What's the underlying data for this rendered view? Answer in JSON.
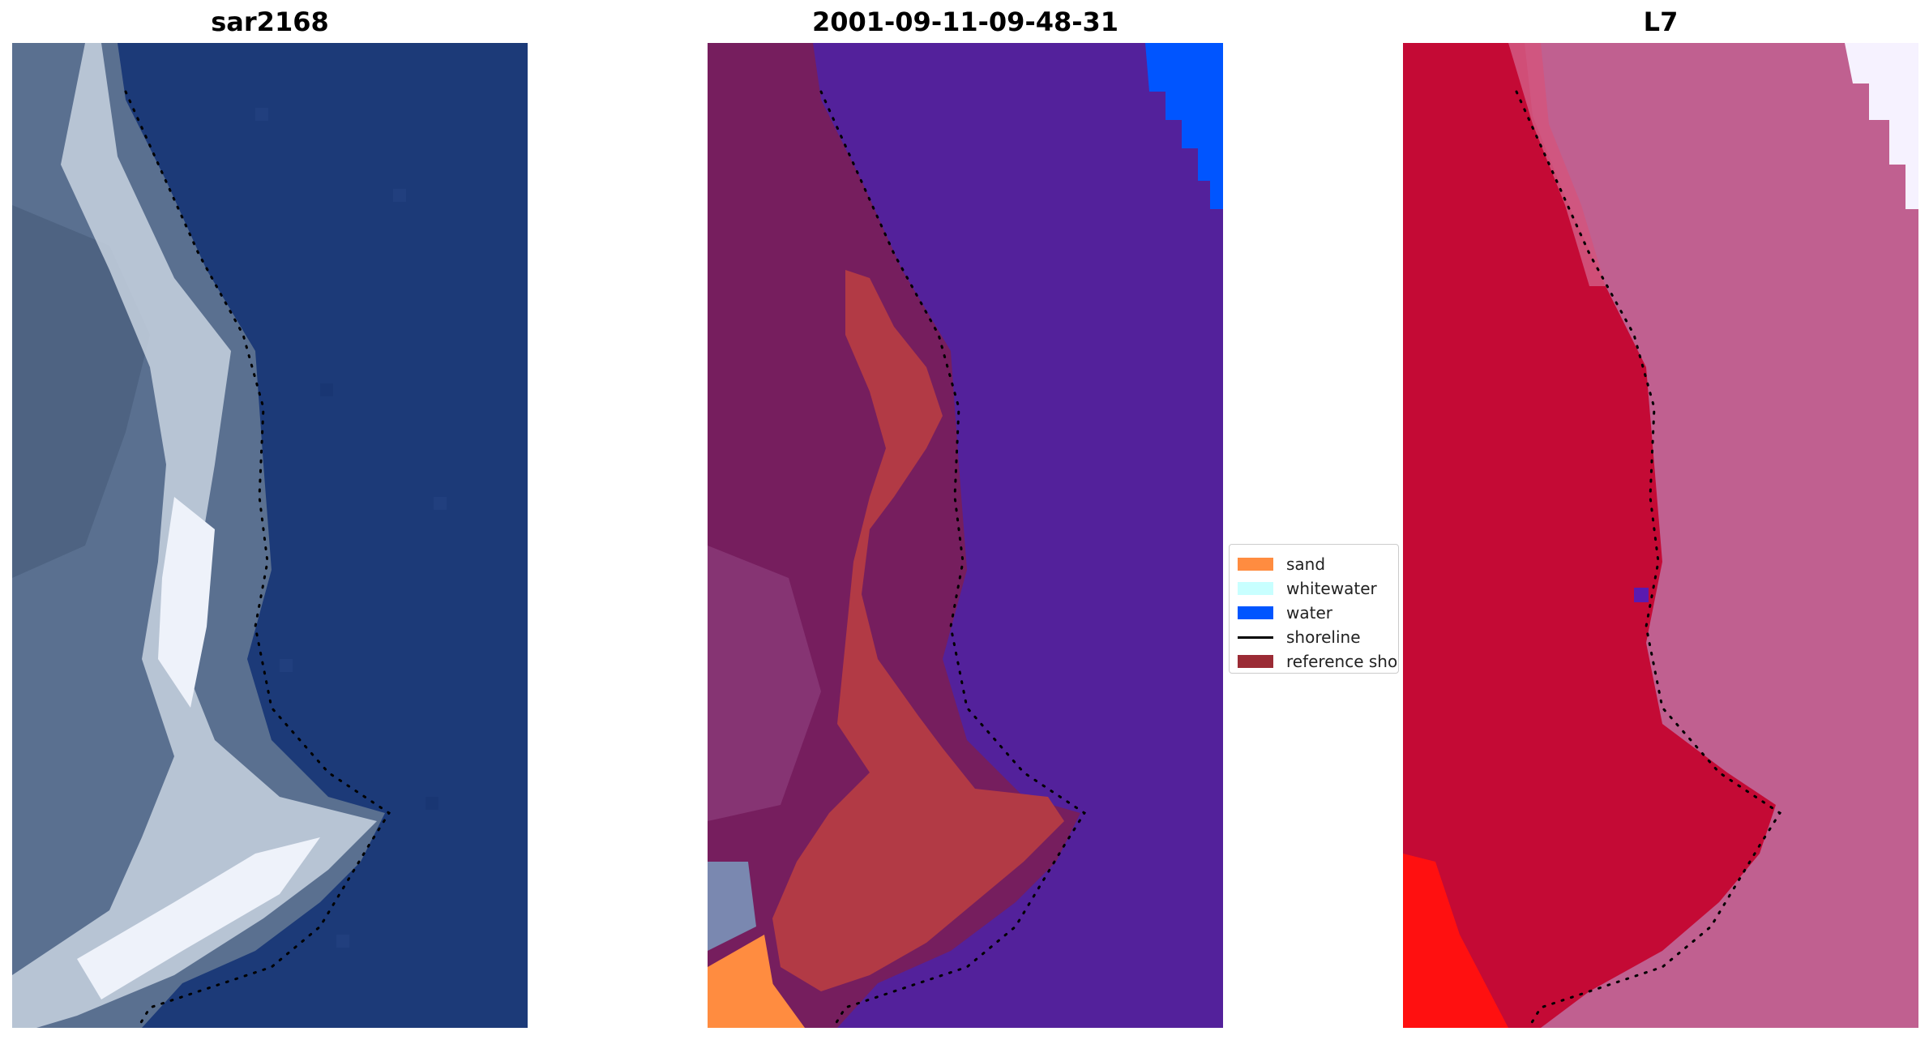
{
  "panels": [
    {
      "title": "sar2168"
    },
    {
      "title": "2001-09-11-09-48-31"
    },
    {
      "title": "L7"
    }
  ],
  "legend": {
    "items": [
      {
        "label": "sand",
        "color": "#ff8c40",
        "kind": "patch"
      },
      {
        "label": "whitewater",
        "color": "#c8ffff",
        "kind": "patch"
      },
      {
        "label": "water",
        "color": "#0055ff",
        "kind": "patch"
      },
      {
        "label": "shoreline",
        "color": "#000000",
        "kind": "line"
      },
      {
        "label": "reference shoreline",
        "color": "#9b2b35",
        "kind": "patch"
      }
    ]
  },
  "colors": {
    "rgb_water": "#1c3a78",
    "rgb_land": "#5a7090",
    "rgb_sand": "#d8e0ee",
    "class_water": "#53219b",
    "class_land": "#761e5e",
    "class_sand_overlay": "#b23a45",
    "class_water_edge": "#0055ff",
    "class_sand": "#ff8c40",
    "false_land": "#c40a35",
    "false_water": "#c06090",
    "false_bright": "#ff1010",
    "false_white": "#f6f2ff"
  }
}
